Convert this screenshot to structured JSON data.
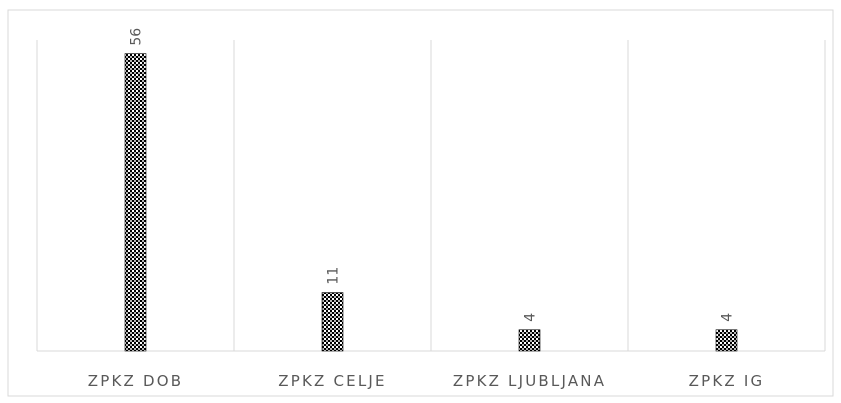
{
  "chart_data": {
    "type": "bar",
    "categories": [
      "ZPKZ DOB",
      "ZPKZ CELJE",
      "ZPKZ LJUBLJANA",
      "ZPKZ IG"
    ],
    "values": [
      56,
      11,
      4,
      4
    ],
    "title": "",
    "xlabel": "",
    "ylabel": "",
    "ylim": [
      0,
      60
    ],
    "grid": "vertical category separators",
    "legend": "none",
    "data_labels": "rotated, above bars",
    "colors": {
      "bar_fill": "#000000",
      "bar_pattern_light": "#ffffff",
      "axis": "#d9d9d9",
      "text": "#595959"
    }
  }
}
